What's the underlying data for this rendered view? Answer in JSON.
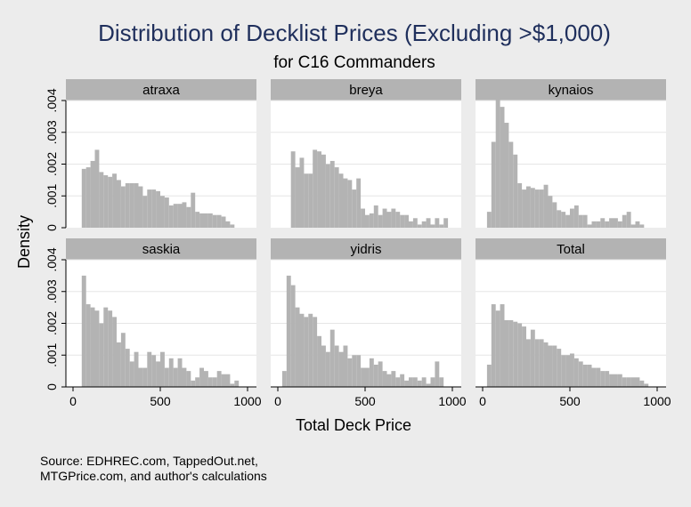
{
  "title": "Distribution of Decklist Prices (Excluding >$1,000)",
  "subtitle": "for C16 Commanders",
  "ylabel": "Density",
  "xlabel": "Total Deck Price",
  "source_lines": [
    "Source: EDHREC.com, TappedOut.net,",
    "MTGPrice.com, and author's calculations"
  ],
  "colors": {
    "bar": "#b3b3b3",
    "header": "#b3b3b3",
    "panel": "#ffffff",
    "background": "#ececec",
    "title": "#1f2f5c"
  },
  "chart_data": {
    "type": "bar",
    "layout": "small-multiples 2x3",
    "xlim": [
      0,
      1000
    ],
    "ylim": [
      0,
      0.004
    ],
    "xticks": [
      0,
      500,
      1000
    ],
    "xtick_labels": [
      "0",
      "500",
      "1000"
    ],
    "yticks": [
      0,
      0.001,
      0.002,
      0.003,
      0.004
    ],
    "ytick_labels": [
      "0",
      ".001",
      ".002",
      ".003",
      ".004"
    ],
    "grid": true,
    "bin_width": 25,
    "panels": [
      {
        "label": "atraxa",
        "bin_start": 50,
        "values": [
          0.00185,
          0.0019,
          0.0021,
          0.00245,
          0.00175,
          0.00165,
          0.0016,
          0.0017,
          0.0015,
          0.0013,
          0.0014,
          0.0014,
          0.0014,
          0.0013,
          0.001,
          0.0012,
          0.0012,
          0.00115,
          0.001,
          0.00095,
          0.0007,
          0.00075,
          0.00075,
          0.0008,
          0.00065,
          0.0011,
          0.0005,
          0.00045,
          0.00045,
          0.00045,
          0.0004,
          0.0004,
          0.00035,
          0.0002,
          0.0001
        ]
      },
      {
        "label": "breya",
        "bin_start": 75,
        "values": [
          0.0024,
          0.0019,
          0.0022,
          0.0017,
          0.0017,
          0.00245,
          0.0024,
          0.0023,
          0.002,
          0.0021,
          0.0019,
          0.0017,
          0.00155,
          0.0015,
          0.0012,
          0.00155,
          0.0006,
          0.0004,
          0.00045,
          0.0007,
          0.0004,
          0.0006,
          0.0005,
          0.0006,
          0.0005,
          0.0004,
          0.0004,
          0.0002,
          0.0003,
          0.0001,
          0.0002,
          0.0003,
          0.0001,
          0.0003,
          0.0001,
          0.0003
        ]
      },
      {
        "label": "kynaios",
        "bin_start": 25,
        "values": [
          0.0005,
          0.0027,
          0.0041,
          0.0038,
          0.0033,
          0.0027,
          0.0023,
          0.0014,
          0.0012,
          0.0013,
          0.00125,
          0.0012,
          0.0012,
          0.00135,
          0.001,
          0.0008,
          0.00055,
          0.0005,
          0.0004,
          0.0006,
          0.0007,
          0.0004,
          0.0004,
          0.0001,
          0.0002,
          0.0002,
          0.0003,
          0.0002,
          0.0003,
          0.0003,
          0.0002,
          0.0004,
          0.0005,
          0.0001,
          0.0002,
          0.0001
        ]
      },
      {
        "label": "saskia",
        "bin_start": 50,
        "values": [
          0.0035,
          0.0026,
          0.0025,
          0.0024,
          0.002,
          0.0025,
          0.0024,
          0.0022,
          0.0014,
          0.0017,
          0.0012,
          0.0008,
          0.0011,
          0.0006,
          0.0006,
          0.0011,
          0.001,
          0.0008,
          0.0011,
          0.0006,
          0.0009,
          0.0006,
          0.0009,
          0.0006,
          0.0005,
          0.0002,
          0.0003,
          0.0006,
          0.0005,
          0.0003,
          0.0003,
          0.0005,
          0.0004,
          0.0004,
          0.0001,
          0.0002
        ]
      },
      {
        "label": "yidris",
        "bin_start": 25,
        "values": [
          0.0005,
          0.0035,
          0.0032,
          0.0025,
          0.0023,
          0.0022,
          0.0023,
          0.0022,
          0.0016,
          0.0013,
          0.0011,
          0.0018,
          0.0013,
          0.0011,
          0.0013,
          0.0009,
          0.001,
          0.001,
          0.0006,
          0.0006,
          0.0009,
          0.0007,
          0.0008,
          0.0005,
          0.0004,
          0.0005,
          0.0003,
          0.0004,
          0.0002,
          0.0003,
          0.0003,
          0.0002,
          0.0003,
          0.0001,
          0.0003,
          0.0008,
          0.0003
        ]
      },
      {
        "label": "Total",
        "bin_start": 25,
        "values": [
          0.0007,
          0.0026,
          0.0024,
          0.0026,
          0.0021,
          0.0021,
          0.00205,
          0.002,
          0.0019,
          0.0015,
          0.0018,
          0.0015,
          0.0015,
          0.0014,
          0.0013,
          0.0013,
          0.0012,
          0.001,
          0.001,
          0.00105,
          0.0009,
          0.0008,
          0.0007,
          0.0007,
          0.0006,
          0.0006,
          0.0005,
          0.0005,
          0.0004,
          0.0004,
          0.0004,
          0.0003,
          0.0003,
          0.0003,
          0.0003,
          0.0002,
          0.0001
        ]
      }
    ]
  }
}
